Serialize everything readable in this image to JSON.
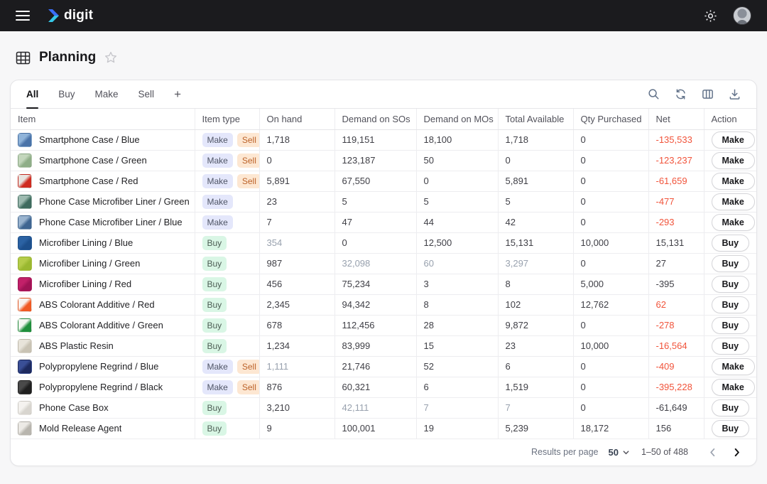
{
  "topbar": {
    "brand": "digit"
  },
  "page": {
    "title": "Planning"
  },
  "tabs": {
    "items": [
      "All",
      "Buy",
      "Make",
      "Sell"
    ],
    "active": "All",
    "add_label": "+"
  },
  "table": {
    "columns": [
      "Item",
      "Item type",
      "On hand",
      "Demand on SOs",
      "Demand on MOs",
      "Total Available",
      "Qty Purchased",
      "Net",
      "Action"
    ],
    "rows": [
      {
        "item": "Smartphone Case / Blue",
        "types": [
          "Make",
          "Sell"
        ],
        "on_hand": "1,718",
        "demand_sos": "119,151",
        "demand_mos": "18,100",
        "total_available": "1,718",
        "qty_purchased": "0",
        "net": "-135,533",
        "net_red": true,
        "action": "Make",
        "muted": [],
        "thumb": [
          "#8fb3d9",
          "#4a73a8"
        ]
      },
      {
        "item": "Smartphone Case / Green",
        "types": [
          "Make",
          "Sell"
        ],
        "on_hand": "0",
        "demand_sos": "123,187",
        "demand_mos": "50",
        "total_available": "0",
        "qty_purchased": "0",
        "net": "-123,237",
        "net_red": true,
        "action": "Make",
        "muted": [],
        "thumb": [
          "#c3d6bc",
          "#8fae88"
        ]
      },
      {
        "item": "Smartphone Case / Red",
        "types": [
          "Make",
          "Sell"
        ],
        "on_hand": "5,891",
        "demand_sos": "67,550",
        "demand_mos": "0",
        "total_available": "5,891",
        "qty_purchased": "0",
        "net": "-61,659",
        "net_red": true,
        "action": "Make",
        "muted": [],
        "thumb": [
          "#e8e4e0",
          "#cf2b20"
        ]
      },
      {
        "item": "Phone Case Microfiber Liner / Green",
        "types": [
          "Make"
        ],
        "on_hand": "23",
        "demand_sos": "5",
        "demand_mos": "5",
        "total_available": "5",
        "qty_purchased": "0",
        "net": "-477",
        "net_red": true,
        "action": "Make",
        "muted": [],
        "thumb": [
          "#9dbab0",
          "#3e6b5e"
        ]
      },
      {
        "item": "Phone Case Microfiber Liner / Blue",
        "types": [
          "Make"
        ],
        "on_hand": "7",
        "demand_sos": "47",
        "demand_mos": "44",
        "total_available": "42",
        "qty_purchased": "0",
        "net": "-293",
        "net_red": true,
        "action": "Make",
        "muted": [],
        "thumb": [
          "#9ab4cf",
          "#3f6591"
        ]
      },
      {
        "item": "Microfiber Lining / Blue",
        "types": [
          "Buy"
        ],
        "on_hand": "354",
        "demand_sos": "0",
        "demand_mos": "12,500",
        "total_available": "15,131",
        "qty_purchased": "10,000",
        "net": "15,131",
        "net_red": false,
        "action": "Buy",
        "muted": [
          "on_hand"
        ],
        "thumb": [
          "#2b62a3",
          "#1d4f8c"
        ]
      },
      {
        "item": "Microfiber Lining / Green",
        "types": [
          "Buy"
        ],
        "on_hand": "987",
        "demand_sos": "32,098",
        "demand_mos": "60",
        "total_available": "3,297",
        "qty_purchased": "0",
        "net": "27",
        "net_red": false,
        "action": "Buy",
        "muted": [
          "demand_sos",
          "demand_mos",
          "total_available"
        ],
        "thumb": [
          "#b5cc4a",
          "#9ab830"
        ]
      },
      {
        "item": "Microfiber Lining / Red",
        "types": [
          "Buy"
        ],
        "on_hand": "456",
        "demand_sos": "75,234",
        "demand_mos": "3",
        "total_available": "8",
        "qty_purchased": "5,000",
        "net": "-395",
        "net_red": false,
        "action": "Buy",
        "muted": [],
        "thumb": [
          "#c22069",
          "#a01355"
        ]
      },
      {
        "item": "ABS Colorant Additive / Red",
        "types": [
          "Buy"
        ],
        "on_hand": "2,345",
        "demand_sos": "94,342",
        "demand_mos": "8",
        "total_available": "102",
        "qty_purchased": "12,762",
        "net": "62",
        "net_red": true,
        "action": "Buy",
        "muted": [],
        "thumb": [
          "#f7f3ef",
          "#f05a24"
        ]
      },
      {
        "item": "ABS Colorant Additive / Green",
        "types": [
          "Buy"
        ],
        "on_hand": "678",
        "demand_sos": "112,456",
        "demand_mos": "28",
        "total_available": "9,872",
        "qty_purchased": "0",
        "net": "-278",
        "net_red": true,
        "action": "Buy",
        "muted": [],
        "thumb": [
          "#f2f6f0",
          "#1f8f3c"
        ]
      },
      {
        "item": "ABS Plastic Resin",
        "types": [
          "Buy"
        ],
        "on_hand": "1,234",
        "demand_sos": "83,999",
        "demand_mos": "15",
        "total_available": "23",
        "qty_purchased": "10,000",
        "net": "-16,564",
        "net_red": true,
        "action": "Buy",
        "muted": [],
        "thumb": [
          "#e8e4da",
          "#c9c3b4"
        ]
      },
      {
        "item": "Polypropylene Regrind / Blue",
        "types": [
          "Make",
          "Sell"
        ],
        "on_hand": "1,111",
        "demand_sos": "21,746",
        "demand_mos": "52",
        "total_available": "6",
        "qty_purchased": "0",
        "net": "-409",
        "net_red": true,
        "action": "Make",
        "muted": [
          "on_hand"
        ],
        "thumb": [
          "#3a4f96",
          "#1d2a5e"
        ]
      },
      {
        "item": "Polypropylene Regrind / Black",
        "types": [
          "Make",
          "Sell"
        ],
        "on_hand": "876",
        "demand_sos": "60,321",
        "demand_mos": "6",
        "total_available": "1,519",
        "qty_purchased": "0",
        "net": "-395,228",
        "net_red": true,
        "action": "Make",
        "muted": [],
        "thumb": [
          "#4a4a4a",
          "#1f1f1f"
        ]
      },
      {
        "item": "Phone Case Box",
        "types": [
          "Buy"
        ],
        "on_hand": "3,210",
        "demand_sos": "42,111",
        "demand_mos": "7",
        "total_available": "7",
        "qty_purchased": "0",
        "net": "-61,649",
        "net_red": false,
        "action": "Buy",
        "muted": [
          "demand_sos",
          "demand_mos",
          "total_available"
        ],
        "thumb": [
          "#f4f2ef",
          "#d8d5cf"
        ]
      },
      {
        "item": "Mold Release Agent",
        "types": [
          "Buy"
        ],
        "on_hand": "9",
        "demand_sos": "100,001",
        "demand_mos": "19",
        "total_available": "5,239",
        "qty_purchased": "18,172",
        "net": "156",
        "net_red": false,
        "action": "Buy",
        "muted": [],
        "thumb": [
          "#eceae6",
          "#b8b5ae"
        ]
      }
    ]
  },
  "footer": {
    "results_per_page_label": "Results per page",
    "page_size": "50",
    "range": "1–50 of 488"
  },
  "colors": {
    "accent_red": "#f1543b",
    "brand_blue": "#3b6ef6",
    "brand_teal": "#35c8e8",
    "badge_make_bg": "#e4e7fb",
    "badge_sell_bg": "#fde7d2",
    "badge_buy_bg": "#d9f6e5"
  }
}
